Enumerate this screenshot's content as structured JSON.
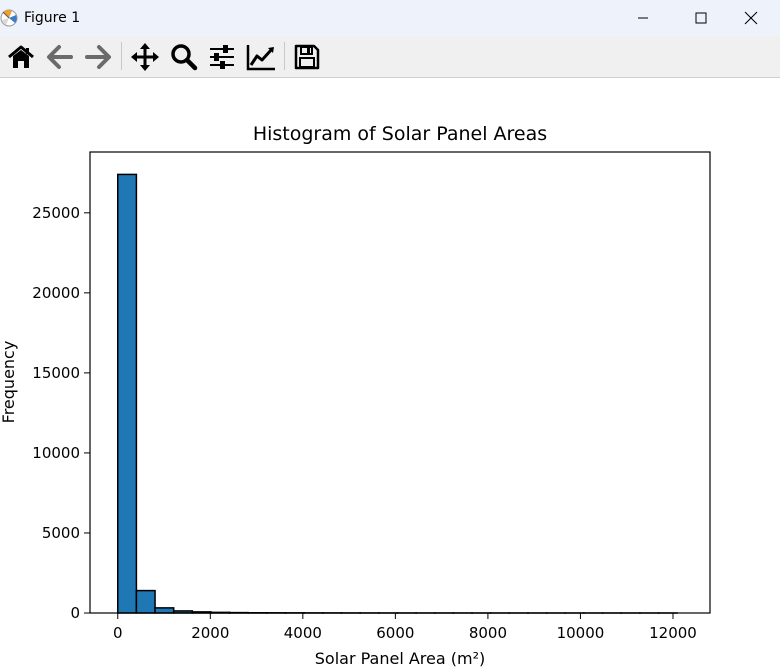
{
  "window": {
    "title": "Figure 1",
    "icons": {
      "app": "matplotlib-logo-icon",
      "minimize": "minimize-icon",
      "maximize": "maximize-icon",
      "close": "close-icon"
    }
  },
  "toolbar": {
    "buttons": [
      {
        "name": "home-button",
        "icon": "home-icon"
      },
      {
        "name": "back-button",
        "icon": "arrow-left-icon"
      },
      {
        "name": "forward-button",
        "icon": "arrow-right-icon"
      },
      {
        "name": "pan-button",
        "icon": "move-icon"
      },
      {
        "name": "zoom-button",
        "icon": "magnifier-icon"
      },
      {
        "name": "subplots-button",
        "icon": "sliders-icon"
      },
      {
        "name": "customize-button",
        "icon": "line-chart-icon"
      },
      {
        "name": "save-button",
        "icon": "floppy-disk-icon"
      }
    ]
  },
  "chart_data": {
    "type": "bar",
    "title": "Histogram of Solar Panel Areas",
    "xlabel": "Solar Panel Area (m²)",
    "ylabel": "Frequency",
    "bar_color": "#1f77b4",
    "edge_color": "#000000",
    "grid": false,
    "legend": "none",
    "xlim": [
      -600,
      12800
    ],
    "ylim": [
      0,
      28800
    ],
    "xticks": [
      0,
      2000,
      4000,
      6000,
      8000,
      10000,
      12000
    ],
    "xtick_labels": [
      "0",
      "2000",
      "4000",
      "6000",
      "8000",
      "10000",
      "12000"
    ],
    "yticks": [
      0,
      5000,
      10000,
      15000,
      20000,
      25000
    ],
    "ytick_labels": [
      "0",
      "5000",
      "10000",
      "15000",
      "20000",
      "25000"
    ],
    "bin_edges": [
      0,
      403,
      806,
      1209,
      1612,
      2015,
      2418,
      2821,
      3224,
      3627,
      4030,
      4433,
      4836,
      5239,
      5642,
      6045,
      6448,
      6851,
      7254,
      7657,
      8060,
      8463,
      8866,
      9269,
      9672,
      10075,
      10478,
      10881,
      11284,
      11687,
      12090
    ],
    "counts": [
      27400,
      1400,
      320,
      130,
      70,
      40,
      25,
      15,
      12,
      10,
      8,
      6,
      5,
      4,
      3,
      3,
      2,
      2,
      2,
      1,
      1,
      1,
      1,
      1,
      1,
      1,
      1,
      1,
      1,
      1
    ]
  }
}
